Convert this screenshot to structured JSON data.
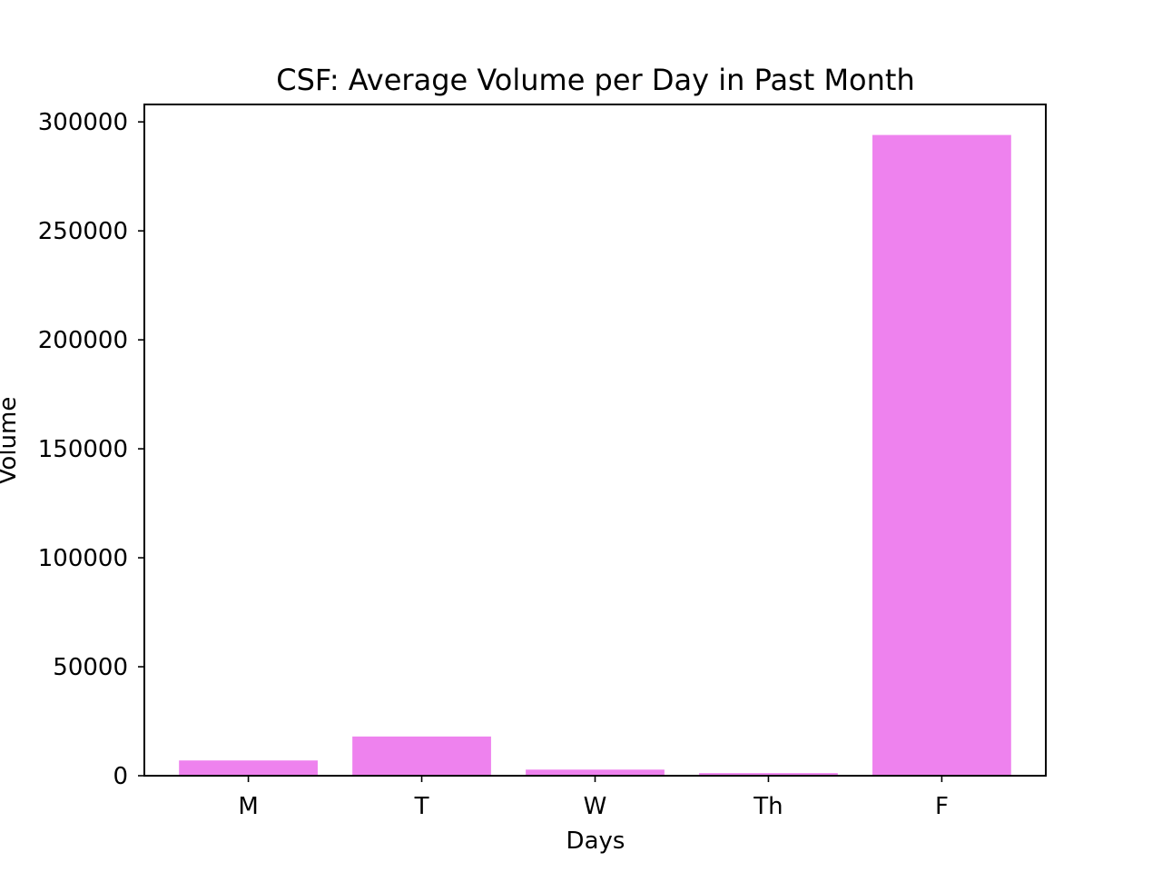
{
  "chart_data": {
    "type": "bar",
    "title": "CSF: Average Volume per Day in Past Month",
    "xlabel": "Days",
    "ylabel": "Volume",
    "categories": [
      "M",
      "T",
      "W",
      "Th",
      "F"
    ],
    "values": [
      7000,
      18000,
      2800,
      1200,
      294000
    ],
    "ylim": [
      0,
      308000
    ],
    "yticks": [
      0,
      50000,
      100000,
      150000,
      200000,
      250000,
      300000
    ],
    "ytick_labels": [
      "0",
      "50000",
      "100000",
      "150000",
      "200000",
      "250000",
      "300000"
    ],
    "bar_color": "#EE82EE",
    "grid": false,
    "legend": "none"
  }
}
